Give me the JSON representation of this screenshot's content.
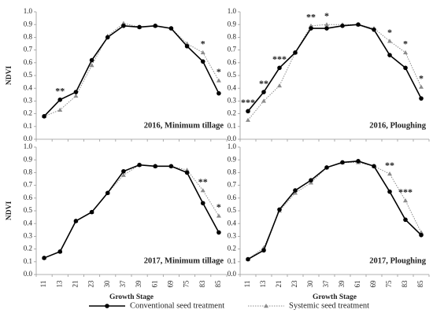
{
  "chart_data": [
    {
      "type": "line",
      "label": "2016, Minimum tillage",
      "y_label": "NDVI",
      "categories": [
        "11",
        "13",
        "21",
        "23",
        "30",
        "37",
        "39",
        "61",
        "69",
        "75",
        "83",
        "85"
      ],
      "x_tick_labels": false,
      "ylim": [
        0,
        1
      ],
      "yticks": [
        {
          "value": 0,
          "label": "0.0"
        },
        0.1,
        0.2,
        0.3,
        0.4,
        0.5,
        0.6,
        0.7,
        0.8,
        0.9,
        {
          "value": 1,
          "label": "1.0"
        }
      ],
      "series": [
        {
          "name": "Conventional seed treatment",
          "color": "#000000",
          "values": [
            0.18,
            0.31,
            0.37,
            0.62,
            0.8,
            0.89,
            0.88,
            0.89,
            0.87,
            0.73,
            0.61,
            0.36
          ]
        },
        {
          "name": "Systemic seed treatment",
          "color": "#8c8c8c",
          "values": [
            0.18,
            0.23,
            0.34,
            0.58,
            0.81,
            0.91,
            0.88,
            0.89,
            0.87,
            0.75,
            0.68,
            0.46
          ]
        }
      ],
      "annotations": [
        {
          "text": "**",
          "at": "13"
        },
        {
          "text": "*",
          "at": "83"
        },
        {
          "text": "*",
          "at": "85"
        }
      ]
    },
    {
      "type": "line",
      "label": "2016, Ploughing",
      "categories": [
        "11",
        "13",
        "21",
        "23",
        "30",
        "37",
        "39",
        "61",
        "69",
        "75",
        "83",
        "85"
      ],
      "x_tick_labels": false,
      "ylim": [
        0,
        1
      ],
      "yticks": [
        {
          "value": 0,
          "label": "0.0"
        },
        0.1,
        0.2,
        0.3,
        0.4,
        0.5,
        0.6,
        0.7,
        0.8,
        0.9,
        {
          "value": 1,
          "label": "1.0"
        }
      ],
      "series": [
        {
          "name": "Conventional seed treatment",
          "color": "#000000",
          "values": [
            0.22,
            0.37,
            0.56,
            0.68,
            0.87,
            0.87,
            0.89,
            0.9,
            0.86,
            0.66,
            0.56,
            0.32
          ]
        },
        {
          "name": "Systemic seed treatment",
          "color": "#8c8c8c",
          "values": [
            0.15,
            0.3,
            0.42,
            0.68,
            0.89,
            0.9,
            0.9,
            0.9,
            0.87,
            0.77,
            0.68,
            0.41
          ]
        }
      ],
      "annotations": [
        {
          "text": "***",
          "at": "11"
        },
        {
          "text": "**",
          "at": "13"
        },
        {
          "text": "***",
          "at": "21"
        },
        {
          "text": "**",
          "at": "30"
        },
        {
          "text": "*",
          "at": "37"
        },
        {
          "text": "*",
          "at": "75"
        },
        {
          "text": "*",
          "at": "83"
        },
        {
          "text": "*",
          "at": "85"
        }
      ]
    },
    {
      "type": "line",
      "label": "2017, Minimum tillage",
      "y_label": "NDVI",
      "x_label": "Growth Stage",
      "categories": [
        "11",
        "13",
        "21",
        "23",
        "30",
        "37",
        "39",
        "61",
        "69",
        "75",
        "83",
        "85"
      ],
      "x_tick_labels": true,
      "ylim": [
        0,
        1
      ],
      "yticks": [
        {
          "value": 0,
          "label": "0.0"
        },
        0.1,
        0.2,
        0.3,
        0.4,
        0.5,
        0.6,
        0.7,
        0.8,
        0.9,
        {
          "value": 1,
          "label": "1.0"
        }
      ],
      "series": [
        {
          "name": "Conventional seed treatment",
          "color": "#000000",
          "values": [
            0.13,
            0.18,
            0.42,
            0.49,
            0.64,
            0.81,
            0.86,
            0.85,
            0.85,
            0.8,
            0.56,
            0.33
          ]
        },
        {
          "name": "Systemic seed treatment",
          "color": "#8c8c8c",
          "values": [
            0.13,
            0.18,
            0.42,
            0.49,
            0.64,
            0.78,
            0.86,
            0.85,
            0.85,
            0.82,
            0.66,
            0.46
          ]
        }
      ],
      "annotations": [
        {
          "text": "**",
          "at": "83"
        },
        {
          "text": "*",
          "at": "85"
        }
      ]
    },
    {
      "type": "line",
      "label": "2017, Ploughing",
      "x_label": "Growth Stage",
      "categories": [
        "11",
        "13",
        "21",
        "23",
        "30",
        "37",
        "39",
        "61",
        "69",
        "75",
        "83",
        "85"
      ],
      "x_tick_labels": true,
      "ylim": [
        0,
        1
      ],
      "yticks": [
        {
          "value": 0,
          "label": "0.0"
        },
        0.1,
        0.2,
        0.3,
        0.4,
        0.5,
        0.6,
        0.7,
        0.8,
        0.9,
        {
          "value": 1,
          "label": "1.0"
        }
      ],
      "series": [
        {
          "name": "Conventional seed treatment",
          "color": "#000000",
          "values": [
            0.12,
            0.19,
            0.51,
            0.66,
            0.74,
            0.84,
            0.88,
            0.89,
            0.85,
            0.65,
            0.43,
            0.31
          ]
        },
        {
          "name": "Systemic seed treatment",
          "color": "#8c8c8c",
          "values": [
            0.12,
            0.21,
            0.5,
            0.64,
            0.72,
            0.84,
            0.88,
            0.88,
            0.85,
            0.79,
            0.58,
            0.33
          ]
        }
      ],
      "annotations": [
        {
          "text": "**",
          "at": "75"
        },
        {
          "text": "***",
          "at": "83"
        }
      ]
    }
  ]
}
